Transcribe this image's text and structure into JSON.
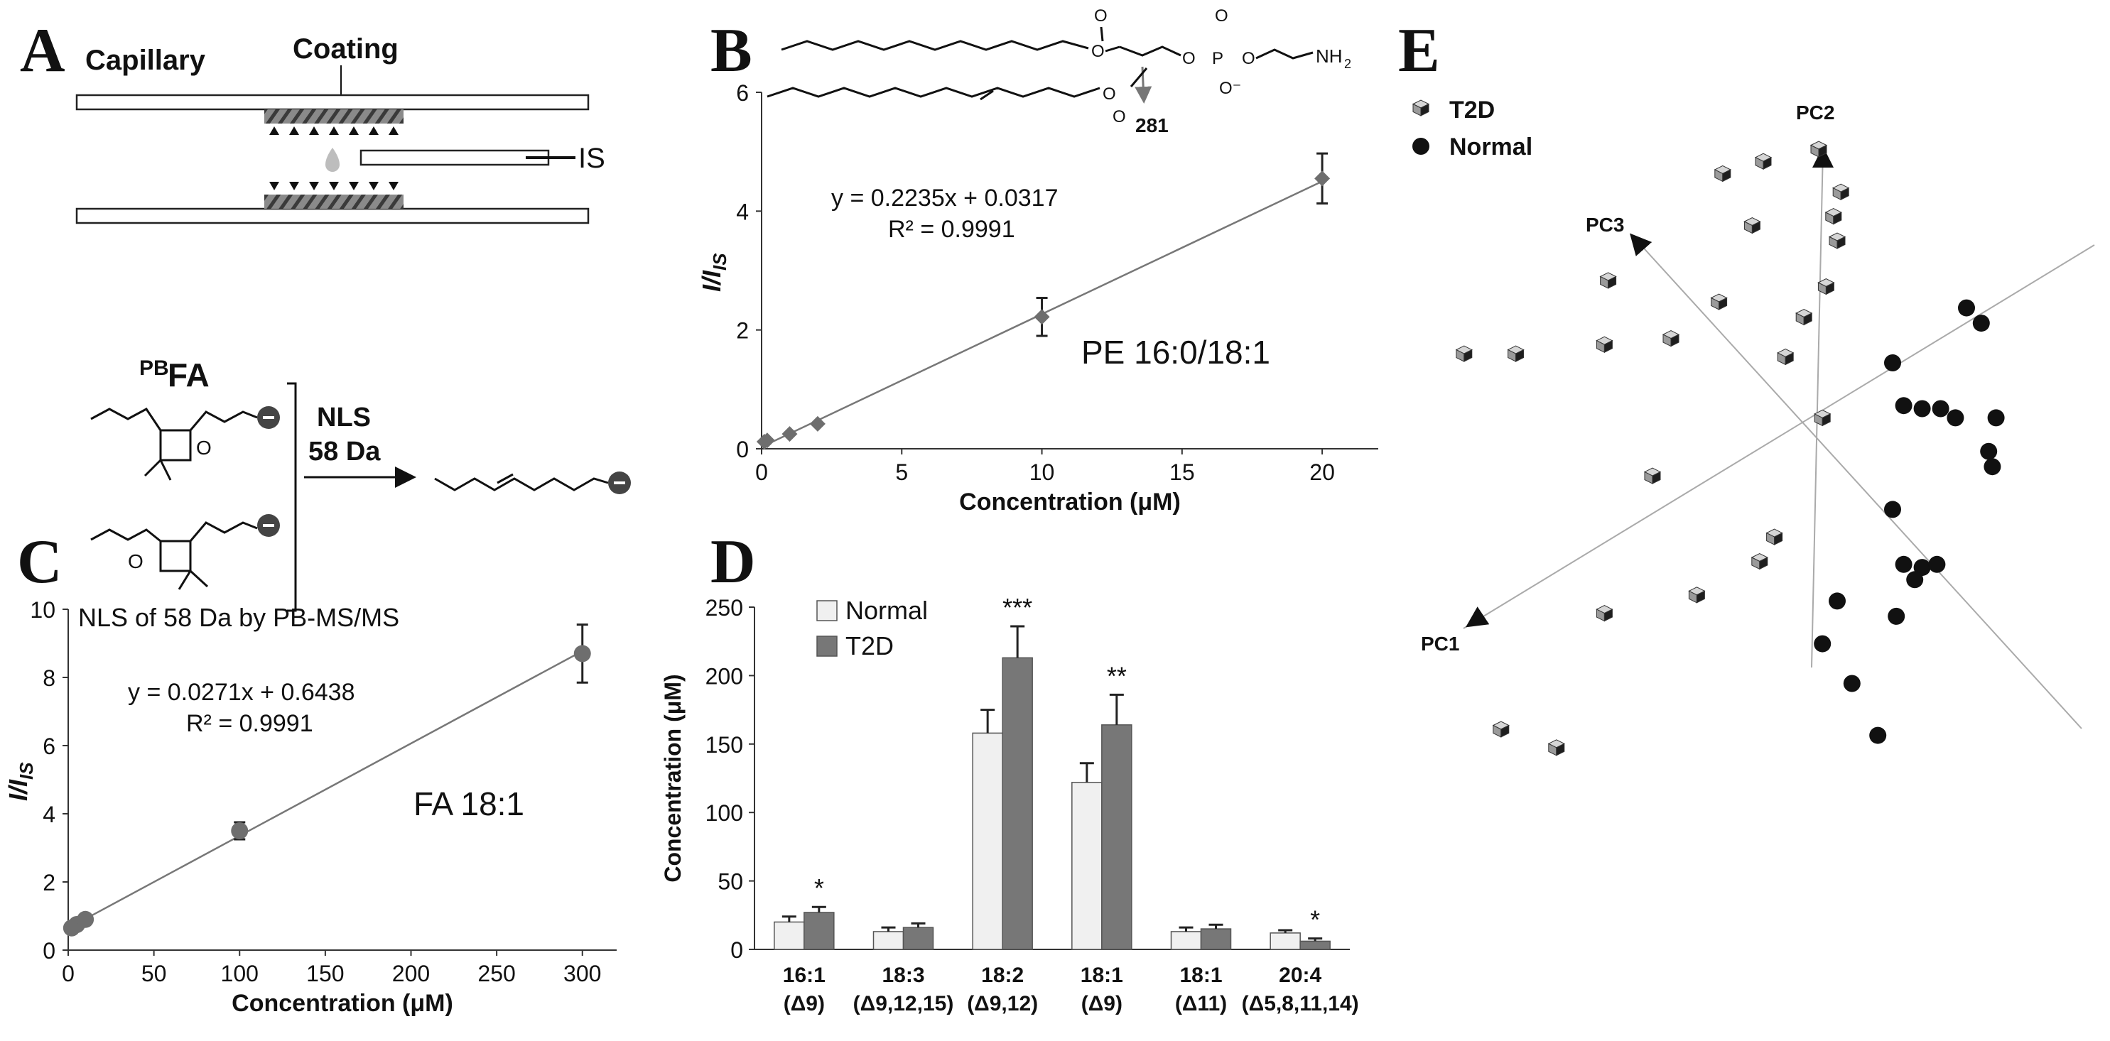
{
  "colors": {
    "normal": "#f0f0f0",
    "t2d": "#777777",
    "dark": "#222222",
    "grey_marker": "#6e6e6e"
  },
  "panelA": {
    "letter": "A",
    "capillary": "Capillary",
    "coating": "Coating",
    "is_label": "IS",
    "pbfa": "FA",
    "pbfa_sup": "PB",
    "nls": "NLS",
    "nls_da": "58 Da"
  },
  "panelB": {
    "letter": "B",
    "fragment": "281",
    "nh2": "NH",
    "nh2_sub": "2"
  },
  "panelD": {
    "letter": "D"
  },
  "panelE": {
    "letter": "E"
  },
  "chart_data": [
    {
      "id": "B",
      "type": "scatter",
      "title": "PE 16:0/18:1",
      "xlabel": "Concentration (μM)",
      "ylabel": "I/I",
      "ylabel_sub": "IS",
      "xlim": [
        0,
        22
      ],
      "ylim": [
        0,
        6
      ],
      "xticks": [
        0,
        5,
        10,
        15,
        20
      ],
      "yticks": [
        0,
        2,
        4,
        6
      ],
      "x": [
        0.1,
        0.2,
        1,
        2,
        10,
        20
      ],
      "y": [
        0.12,
        0.14,
        0.25,
        0.42,
        2.22,
        4.55
      ],
      "err": [
        0,
        0,
        0,
        0,
        0.32,
        0.42
      ],
      "fit": {
        "slope": 0.2235,
        "intercept": 0.0317,
        "equation": "y = 0.2235x + 0.0317",
        "r2": "R² = 0.9991"
      }
    },
    {
      "id": "C",
      "type": "scatter",
      "title": "NLS of 58 Da by PB-MS/MS",
      "annotation": "FA 18:1",
      "xlabel": "Concentration (μM)",
      "ylabel": "I/I",
      "ylabel_sub": "IS",
      "xlim": [
        0,
        320
      ],
      "ylim": [
        0,
        10
      ],
      "xticks": [
        0,
        50,
        100,
        150,
        200,
        250,
        300
      ],
      "yticks": [
        0,
        2,
        4,
        6,
        8,
        10
      ],
      "x": [
        2,
        5,
        10,
        100,
        300
      ],
      "y": [
        0.65,
        0.75,
        0.9,
        3.5,
        8.7
      ],
      "err": [
        0,
        0,
        0,
        0.25,
        0.85
      ],
      "fit": {
        "slope": 0.0271,
        "intercept": 0.6438,
        "equation": "y = 0.0271x + 0.6438",
        "r2": "R² = 0.9991"
      }
    },
    {
      "id": "D",
      "type": "bar",
      "ylabel": "Concentration (μM)",
      "ylim": [
        0,
        250
      ],
      "yticks": [
        0,
        50,
        100,
        150,
        200,
        250
      ],
      "categories": [
        {
          "line1": "16:1",
          "line2": "(Δ9)"
        },
        {
          "line1": "18:3",
          "line2": "(Δ9,12,15)"
        },
        {
          "line1": "18:2",
          "line2": "(Δ9,12)"
        },
        {
          "line1": "18:1",
          "line2": "(Δ9)"
        },
        {
          "line1": "18:1",
          "line2": "(Δ11)"
        },
        {
          "line1": "20:4",
          "line2": "(Δ5,8,11,14)"
        }
      ],
      "series": [
        {
          "name": "Normal",
          "values": [
            20,
            13,
            158,
            122,
            13,
            12
          ],
          "err": [
            4,
            3,
            17,
            14,
            3,
            2
          ]
        },
        {
          "name": "T2D",
          "values": [
            27,
            16,
            213,
            164,
            15,
            6
          ],
          "err": [
            4,
            3,
            23,
            22,
            3,
            2
          ]
        }
      ],
      "significance": [
        "*",
        "",
        "***",
        "**",
        "",
        "*"
      ]
    },
    {
      "id": "E",
      "type": "scatter",
      "axis_labels": {
        "pc1": "PC1",
        "pc2": "PC2",
        "pc3": "PC3"
      },
      "legend": [
        "T2D",
        "Normal"
      ],
      "series": [
        {
          "name": "T2D",
          "points": [
            [
              0.0,
              1.0
            ],
            [
              -0.15,
              0.96
            ],
            [
              -0.26,
              0.92
            ],
            [
              -0.18,
              0.75
            ],
            [
              0.06,
              0.86
            ],
            [
              0.04,
              0.78
            ],
            [
              0.05,
              0.7
            ],
            [
              -0.57,
              0.57
            ],
            [
              -0.27,
              0.5
            ],
            [
              -0.04,
              0.45
            ],
            [
              0.02,
              0.55
            ],
            [
              -0.58,
              0.36
            ],
            [
              -0.82,
              0.33
            ],
            [
              -0.96,
              0.33
            ],
            [
              -0.09,
              0.32
            ],
            [
              0.01,
              0.12
            ],
            [
              -0.4,
              0.38
            ],
            [
              -0.45,
              -0.07
            ],
            [
              -0.12,
              -0.27
            ],
            [
              -0.16,
              -0.35
            ],
            [
              -0.33,
              -0.46
            ],
            [
              -0.58,
              -0.52
            ],
            [
              -0.86,
              -0.9
            ],
            [
              -0.71,
              -0.96
            ]
          ]
        },
        {
          "name": "Normal",
          "points": [
            [
              0.4,
              0.48
            ],
            [
              0.44,
              0.43
            ],
            [
              0.2,
              0.3
            ],
            [
              0.23,
              0.16
            ],
            [
              0.28,
              0.15
            ],
            [
              0.33,
              0.15
            ],
            [
              0.37,
              0.12
            ],
            [
              0.48,
              0.12
            ],
            [
              0.46,
              0.01
            ],
            [
              0.47,
              -0.04
            ],
            [
              0.2,
              -0.18
            ],
            [
              0.23,
              -0.36
            ],
            [
              0.28,
              -0.37
            ],
            [
              0.32,
              -0.36
            ],
            [
              0.26,
              -0.41
            ],
            [
              0.05,
              -0.48
            ],
            [
              0.21,
              -0.53
            ],
            [
              0.01,
              -0.62
            ],
            [
              0.09,
              -0.75
            ],
            [
              0.16,
              -0.92
            ]
          ]
        }
      ]
    }
  ]
}
